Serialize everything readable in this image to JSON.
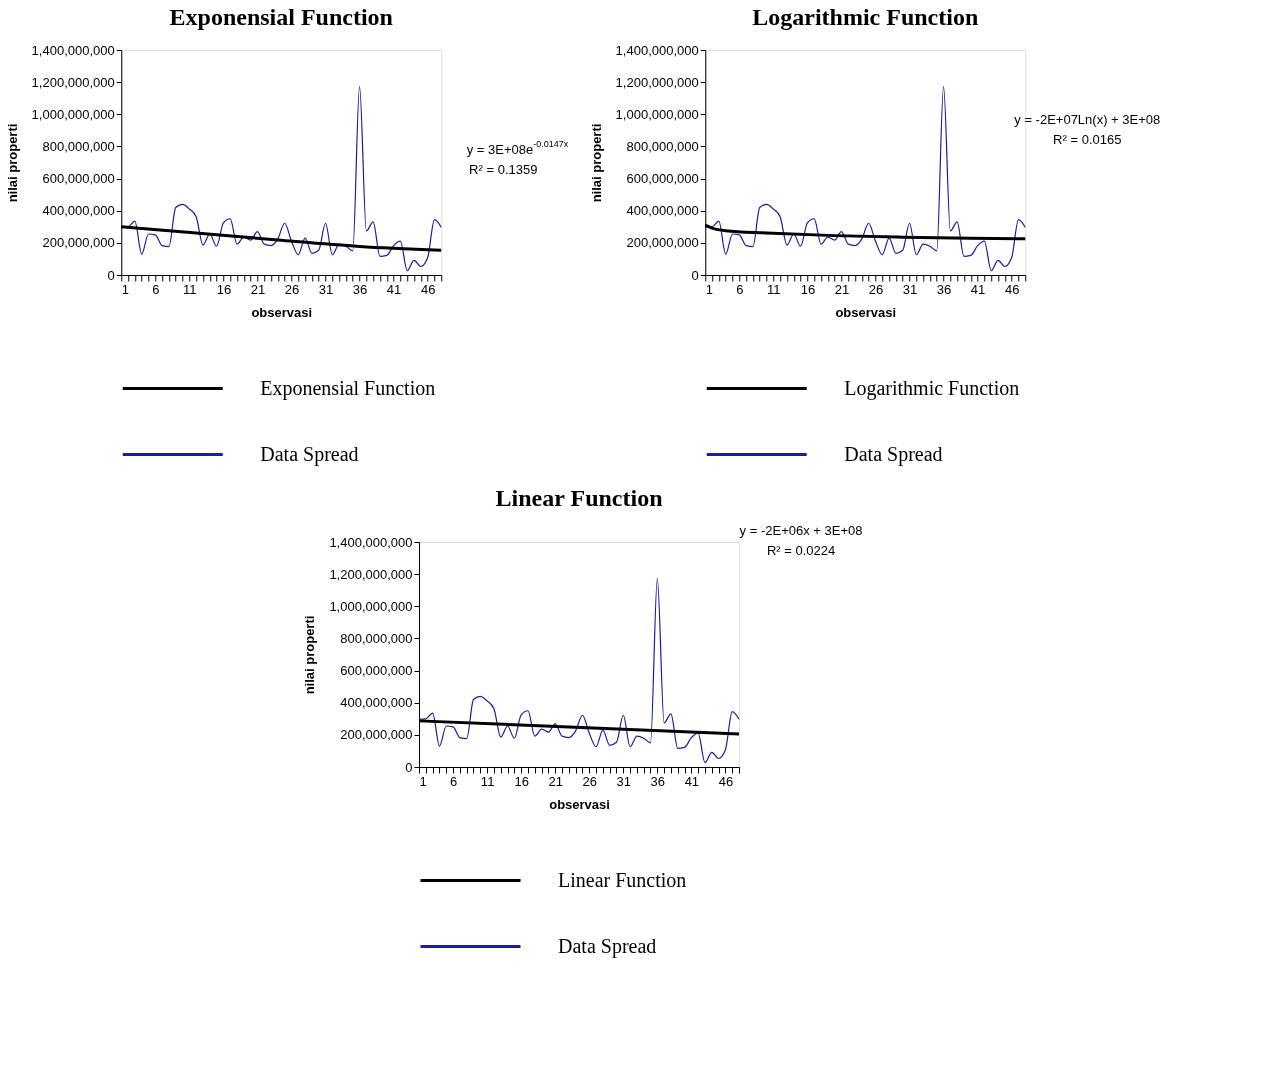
{
  "chart_data": [
    {
      "type": "line",
      "title": "Exponensial Function",
      "xlabel": "observasi",
      "ylabel": "nilai properti",
      "x": [
        1,
        2,
        3,
        4,
        5,
        6,
        7,
        8,
        9,
        10,
        11,
        12,
        13,
        14,
        15,
        16,
        17,
        18,
        19,
        20,
        21,
        22,
        23,
        24,
        25,
        26,
        27,
        28,
        29,
        30,
        31,
        32,
        33,
        34,
        35,
        36,
        37,
        38,
        39,
        40,
        41,
        42,
        43,
        44,
        45,
        46,
        47,
        48
      ],
      "series": [
        {
          "name": "Exponensial Function",
          "color": "#000000",
          "x": [
            1,
            12,
            24,
            36,
            48
          ],
          "values": [
            300000000,
            262000000,
            218000000,
            178000000,
            154000000
          ]
        },
        {
          "name": "Data Spread",
          "color": "#1c1c9c",
          "values": [
            297000000,
            300000000,
            335000000,
            130000000,
            255000000,
            250000000,
            183000000,
            177000000,
            420000000,
            440000000,
            411000000,
            363000000,
            186000000,
            255000000,
            179000000,
            325000000,
            350000000,
            192000000,
            236000000,
            217000000,
            270000000,
            192000000,
            183000000,
            225000000,
            322000000,
            211000000,
            126000000,
            230000000,
            135000000,
            154000000,
            322000000,
            126000000,
            192000000,
            179000000,
            150000000,
            1172000000,
            274000000,
            331000000,
            116000000,
            122000000,
            183000000,
            211000000,
            27000000,
            91000000,
            53000000,
            107000000,
            344000000,
            297000000
          ]
        }
      ],
      "xlim": [
        1,
        48
      ],
      "xticks": [
        1,
        {
          "value": 2,
          "label": null
        },
        {
          "value": 3,
          "label": null
        },
        {
          "value": 4,
          "label": null
        },
        {
          "value": 5,
          "label": null
        },
        6,
        {
          "value": 7,
          "label": null
        },
        {
          "value": 8,
          "label": null
        },
        {
          "value": 9,
          "label": null
        },
        {
          "value": 10,
          "label": null
        },
        11,
        {
          "value": 12,
          "label": null
        },
        {
          "value": 13,
          "label": null
        },
        {
          "value": 14,
          "label": null
        },
        {
          "value": 15,
          "label": null
        },
        16,
        {
          "value": 17,
          "label": null
        },
        {
          "value": 18,
          "label": null
        },
        {
          "value": 19,
          "label": null
        },
        {
          "value": 20,
          "label": null
        },
        21,
        {
          "value": 22,
          "label": null
        },
        {
          "value": 23,
          "label": null
        },
        {
          "value": 24,
          "label": null
        },
        {
          "value": 25,
          "label": null
        },
        26,
        {
          "value": 27,
          "label": null
        },
        {
          "value": 28,
          "label": null
        },
        {
          "value": 29,
          "label": null
        },
        {
          "value": 30,
          "label": null
        },
        31,
        {
          "value": 32,
          "label": null
        },
        {
          "value": 33,
          "label": null
        },
        {
          "value": 34,
          "label": null
        },
        {
          "value": 35,
          "label": null
        },
        36,
        {
          "value": 37,
          "label": null
        },
        {
          "value": 38,
          "label": null
        },
        {
          "value": 39,
          "label": null
        },
        {
          "value": 40,
          "label": null
        },
        41,
        {
          "value": 42,
          "label": null
        },
        {
          "value": 43,
          "label": null
        },
        {
          "value": 44,
          "label": null
        },
        {
          "value": 45,
          "label": null
        },
        46,
        {
          "value": 47,
          "label": null
        },
        {
          "value": 48,
          "label": null
        }
      ],
      "ylim": [
        0,
        1400000000
      ],
      "yticks": [
        0,
        {
          "value": 200000000,
          "label": "200,000,000"
        },
        {
          "value": 400000000,
          "label": "400,000,000"
        },
        {
          "value": 600000000,
          "label": "600,000,000"
        },
        {
          "value": 800000000,
          "label": "800,000,000"
        },
        {
          "value": 1000000000,
          "label": "1,000,000,000"
        },
        {
          "value": 1200000000,
          "label": "1,200,000,000"
        },
        {
          "value": 1400000000,
          "label": "1,400,000,000"
        }
      ],
      "annotations": [
        "y = 3E+08e$^{-0.0147x}$",
        "R² = 0.1359"
      ],
      "legend": "bottom",
      "grid": false
    },
    {
      "type": "line",
      "title": "Logarithmic Function",
      "xlabel": "observasi",
      "ylabel": "nilai properti",
      "x": [
        1,
        2,
        3,
        4,
        5,
        6,
        7,
        8,
        9,
        10,
        11,
        12,
        13,
        14,
        15,
        16,
        17,
        18,
        19,
        20,
        21,
        22,
        23,
        24,
        25,
        26,
        27,
        28,
        29,
        30,
        31,
        32,
        33,
        34,
        35,
        36,
        37,
        38,
        39,
        40,
        41,
        42,
        43,
        44,
        45,
        46,
        47,
        48
      ],
      "series": [
        {
          "name": "Logarithmic Function",
          "color": "#000000",
          "x": [
            1,
            2,
            4,
            10,
            20,
            30,
            40,
            48
          ],
          "values": [
            310000000,
            292000000,
            276000000,
            262000000,
            245000000,
            235000000,
            228000000,
            225000000
          ]
        },
        {
          "name": "Data Spread",
          "color": "#1c1c9c",
          "values": [
            297000000,
            300000000,
            335000000,
            130000000,
            255000000,
            250000000,
            183000000,
            177000000,
            420000000,
            440000000,
            411000000,
            363000000,
            186000000,
            255000000,
            179000000,
            325000000,
            350000000,
            192000000,
            236000000,
            217000000,
            270000000,
            192000000,
            183000000,
            225000000,
            322000000,
            211000000,
            126000000,
            230000000,
            135000000,
            154000000,
            322000000,
            126000000,
            192000000,
            179000000,
            150000000,
            1172000000,
            274000000,
            331000000,
            116000000,
            122000000,
            183000000,
            211000000,
            27000000,
            91000000,
            53000000,
            107000000,
            344000000,
            297000000
          ]
        }
      ],
      "xlim": [
        1,
        48
      ],
      "xticks": [
        1,
        {
          "value": 2,
          "label": null
        },
        {
          "value": 3,
          "label": null
        },
        {
          "value": 4,
          "label": null
        },
        {
          "value": 5,
          "label": null
        },
        6,
        {
          "value": 7,
          "label": null
        },
        {
          "value": 8,
          "label": null
        },
        {
          "value": 9,
          "label": null
        },
        {
          "value": 10,
          "label": null
        },
        11,
        {
          "value": 12,
          "label": null
        },
        {
          "value": 13,
          "label": null
        },
        {
          "value": 14,
          "label": null
        },
        {
          "value": 15,
          "label": null
        },
        16,
        {
          "value": 17,
          "label": null
        },
        {
          "value": 18,
          "label": null
        },
        {
          "value": 19,
          "label": null
        },
        {
          "value": 20,
          "label": null
        },
        21,
        {
          "value": 22,
          "label": null
        },
        {
          "value": 23,
          "label": null
        },
        {
          "value": 24,
          "label": null
        },
        {
          "value": 25,
          "label": null
        },
        26,
        {
          "value": 27,
          "label": null
        },
        {
          "value": 28,
          "label": null
        },
        {
          "value": 29,
          "label": null
        },
        {
          "value": 30,
          "label": null
        },
        31,
        {
          "value": 32,
          "label": null
        },
        {
          "value": 33,
          "label": null
        },
        {
          "value": 34,
          "label": null
        },
        {
          "value": 35,
          "label": null
        },
        36,
        {
          "value": 37,
          "label": null
        },
        {
          "value": 38,
          "label": null
        },
        {
          "value": 39,
          "label": null
        },
        {
          "value": 40,
          "label": null
        },
        41,
        {
          "value": 42,
          "label": null
        },
        {
          "value": 43,
          "label": null
        },
        {
          "value": 44,
          "label": null
        },
        {
          "value": 45,
          "label": null
        },
        46,
        {
          "value": 47,
          "label": null
        },
        {
          "value": 48,
          "label": null
        }
      ],
      "ylim": [
        0,
        1400000000
      ],
      "yticks": [
        0,
        {
          "value": 200000000,
          "label": "200,000,000"
        },
        {
          "value": 400000000,
          "label": "400,000,000"
        },
        {
          "value": 600000000,
          "label": "600,000,000"
        },
        {
          "value": 800000000,
          "label": "800,000,000"
        },
        {
          "value": 1000000000,
          "label": "1,000,000,000"
        },
        {
          "value": 1200000000,
          "label": "1,200,000,000"
        },
        {
          "value": 1400000000,
          "label": "1,400,000,000"
        }
      ],
      "annotations": [
        "y = -2E+07Ln(x) + 3E+08",
        "R² = 0.0165"
      ],
      "legend": "bottom",
      "grid": false
    },
    {
      "type": "line",
      "title": "Linear Function",
      "xlabel": "observasi",
      "ylabel": "nilai properti",
      "x": [
        1,
        2,
        3,
        4,
        5,
        6,
        7,
        8,
        9,
        10,
        11,
        12,
        13,
        14,
        15,
        16,
        17,
        18,
        19,
        20,
        21,
        22,
        23,
        24,
        25,
        26,
        27,
        28,
        29,
        30,
        31,
        32,
        33,
        34,
        35,
        36,
        37,
        38,
        39,
        40,
        41,
        42,
        43,
        44,
        45,
        46,
        47,
        48
      ],
      "series": [
        {
          "name": "Linear Function",
          "color": "#000000",
          "x": [
            1,
            48
          ],
          "values": [
            287000000,
            206000000
          ]
        },
        {
          "name": "Data Spread",
          "color": "#1c1c9c",
          "values": [
            297000000,
            300000000,
            335000000,
            130000000,
            255000000,
            250000000,
            183000000,
            177000000,
            420000000,
            440000000,
            411000000,
            363000000,
            186000000,
            255000000,
            179000000,
            325000000,
            350000000,
            192000000,
            236000000,
            217000000,
            270000000,
            192000000,
            183000000,
            225000000,
            322000000,
            211000000,
            126000000,
            230000000,
            135000000,
            154000000,
            322000000,
            126000000,
            192000000,
            179000000,
            150000000,
            1172000000,
            274000000,
            331000000,
            116000000,
            122000000,
            183000000,
            211000000,
            27000000,
            91000000,
            53000000,
            107000000,
            344000000,
            297000000
          ]
        }
      ],
      "xlim": [
        1,
        48
      ],
      "xticks": [
        1,
        {
          "value": 2,
          "label": null
        },
        {
          "value": 3,
          "label": null
        },
        {
          "value": 4,
          "label": null
        },
        {
          "value": 5,
          "label": null
        },
        6,
        {
          "value": 7,
          "label": null
        },
        {
          "value": 8,
          "label": null
        },
        {
          "value": 9,
          "label": null
        },
        {
          "value": 10,
          "label": null
        },
        11,
        {
          "value": 12,
          "label": null
        },
        {
          "value": 13,
          "label": null
        },
        {
          "value": 14,
          "label": null
        },
        {
          "value": 15,
          "label": null
        },
        16,
        {
          "value": 17,
          "label": null
        },
        {
          "value": 18,
          "label": null
        },
        {
          "value": 19,
          "label": null
        },
        {
          "value": 20,
          "label": null
        },
        21,
        {
          "value": 22,
          "label": null
        },
        {
          "value": 23,
          "label": null
        },
        {
          "value": 24,
          "label": null
        },
        {
          "value": 25,
          "label": null
        },
        26,
        {
          "value": 27,
          "label": null
        },
        {
          "value": 28,
          "label": null
        },
        {
          "value": 29,
          "label": null
        },
        {
          "value": 30,
          "label": null
        },
        31,
        {
          "value": 32,
          "label": null
        },
        {
          "value": 33,
          "label": null
        },
        {
          "value": 34,
          "label": null
        },
        {
          "value": 35,
          "label": null
        },
        36,
        {
          "value": 37,
          "label": null
        },
        {
          "value": 38,
          "label": null
        },
        {
          "value": 39,
          "label": null
        },
        {
          "value": 40,
          "label": null
        },
        41,
        {
          "value": 42,
          "label": null
        },
        {
          "value": 43,
          "label": null
        },
        {
          "value": 44,
          "label": null
        },
        {
          "value": 45,
          "label": null
        },
        46,
        {
          "value": 47,
          "label": null
        },
        {
          "value": 48,
          "label": null
        }
      ],
      "ylim": [
        0,
        1400000000
      ],
      "yticks": [
        0,
        {
          "value": 200000000,
          "label": "200,000,000"
        },
        {
          "value": 400000000,
          "label": "400,000,000"
        },
        {
          "value": 600000000,
          "label": "600,000,000"
        },
        {
          "value": 800000000,
          "label": "800,000,000"
        },
        {
          "value": 1000000000,
          "label": "1,000,000,000"
        },
        {
          "value": 1200000000,
          "label": "1,200,000,000"
        },
        {
          "value": 1400000000,
          "label": "1,400,000,000"
        }
      ],
      "annotations": [
        "y = -2E+06x + 3E+08",
        "R² = 0.0224"
      ],
      "legend": "bottom",
      "grid": false
    }
  ]
}
